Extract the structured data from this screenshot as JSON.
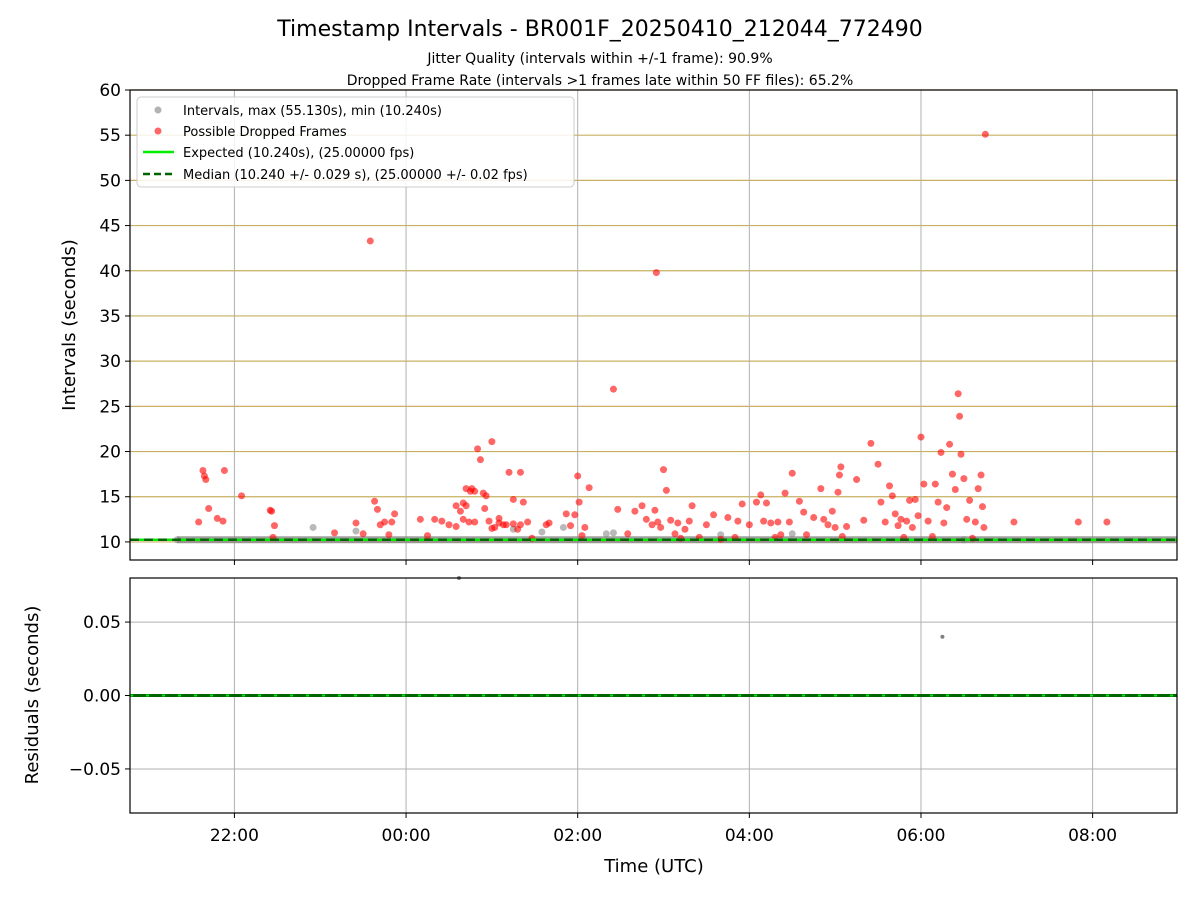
{
  "title": "Timestamp Intervals - BR001F_20250410_212044_772490",
  "subtitle1": "Jitter Quality (intervals within +/-1 frame): 90.9%",
  "subtitle2": "Dropped Frame Rate (intervals >1 frames late within 50 FF files): 65.2%",
  "colors": {
    "interval": "#808080",
    "dropped": "#ff0000",
    "expected": "#00ee00",
    "median": "#006400",
    "hgrid_top": "#c8b060",
    "grid": "#b0b0b0"
  },
  "chart_data": [
    {
      "type": "scatter",
      "ylabel": "Intervals (seconds)",
      "xlim": [
        "20:47",
        "08:59"
      ],
      "ylim": [
        8,
        60
      ],
      "x_ticks": [
        "22:00",
        "00:00",
        "02:00",
        "04:00",
        "06:00",
        "08:00"
      ],
      "y_ticks": [
        10,
        15,
        20,
        25,
        30,
        35,
        40,
        45,
        50,
        55,
        60
      ],
      "grid": true,
      "legend_position": "top-left",
      "legend": [
        "Intervals, max (55.130s), min (10.240s)",
        "Possible Dropped Frames",
        "Expected (10.240s), (25.00000 fps)",
        "Median (10.240 +/- 0.029 s), (25.00000 +/- 0.02 fps)"
      ],
      "expected_value": 10.24,
      "median_value": 10.24,
      "series": [
        {
          "name": "Intervals, max (55.130s), min (10.240s)",
          "points": [
            [
              "21:20",
              10.24
            ],
            [
              "06:30",
              10.24
            ],
            [
              "09:00",
              10.24
            ],
            [
              "22:55",
              11.6
            ],
            [
              "23:25",
              11.2
            ],
            [
              "01:15",
              11.4
            ],
            [
              "01:35",
              11.1
            ],
            [
              "01:50",
              11.6
            ],
            [
              "02:20",
              10.9
            ],
            [
              "02:25",
              11.0
            ],
            [
              "03:40",
              10.8
            ],
            [
              "04:30",
              10.9
            ]
          ]
        },
        {
          "name": "Possible Dropped Frames",
          "points": [
            [
              "21:35",
              12.2
            ],
            [
              "21:38",
              17.9
            ],
            [
              "21:39",
              17.3
            ],
            [
              "21:40",
              16.9
            ],
            [
              "21:42",
              13.7
            ],
            [
              "21:48",
              12.6
            ],
            [
              "21:52",
              12.3
            ],
            [
              "21:53",
              17.9
            ],
            [
              "22:05",
              15.1
            ],
            [
              "22:25",
              13.5
            ],
            [
              "22:26",
              13.4
            ],
            [
              "22:27",
              10.5
            ],
            [
              "22:28",
              11.8
            ],
            [
              "23:10",
              11.0
            ],
            [
              "23:25",
              12.1
            ],
            [
              "23:30",
              10.9
            ],
            [
              "23:35",
              43.3
            ],
            [
              "23:38",
              14.5
            ],
            [
              "23:40",
              13.6
            ],
            [
              "23:42",
              11.9
            ],
            [
              "23:45",
              12.2
            ],
            [
              "23:48",
              10.8
            ],
            [
              "23:50",
              12.2
            ],
            [
              "23:52",
              13.1
            ],
            [
              "00:10",
              12.5
            ],
            [
              "00:15",
              10.7
            ],
            [
              "00:20",
              12.5
            ],
            [
              "00:25",
              12.3
            ],
            [
              "00:30",
              11.9
            ],
            [
              "00:35",
              14.0
            ],
            [
              "00:40",
              14.3
            ],
            [
              "00:42",
              15.9
            ],
            [
              "00:45",
              15.6
            ],
            [
              "00:48",
              12.2
            ],
            [
              "00:55",
              13.7
            ],
            [
              "01:00",
              11.5
            ],
            [
              "01:05",
              12.1
            ],
            [
              "01:10",
              11.9
            ],
            [
              "01:15",
              14.7
            ],
            [
              "01:20",
              17.7
            ],
            [
              "00:35",
              11.7
            ],
            [
              "00:38",
              13.4
            ],
            [
              "00:40",
              12.5
            ],
            [
              "00:42",
              14.0
            ],
            [
              "00:44",
              12.2
            ],
            [
              "00:46",
              15.9
            ],
            [
              "00:48",
              15.6
            ],
            [
              "00:50",
              20.3
            ],
            [
              "00:52",
              19.1
            ],
            [
              "00:54",
              15.4
            ],
            [
              "00:56",
              15.1
            ],
            [
              "00:58",
              12.3
            ],
            [
              "01:00",
              21.1
            ],
            [
              "01:02",
              11.6
            ],
            [
              "01:05",
              12.6
            ],
            [
              "01:08",
              11.9
            ],
            [
              "01:12",
              17.7
            ],
            [
              "01:15",
              12.0
            ],
            [
              "01:18",
              11.4
            ],
            [
              "01:20",
              11.9
            ],
            [
              "01:22",
              14.4
            ],
            [
              "01:25",
              12.2
            ],
            [
              "01:28",
              10.4
            ],
            [
              "01:38",
              11.9
            ],
            [
              "01:40",
              12.1
            ],
            [
              "01:52",
              13.1
            ],
            [
              "01:55",
              11.8
            ],
            [
              "01:58",
              13.0
            ],
            [
              "02:00",
              17.3
            ],
            [
              "02:01",
              14.4
            ],
            [
              "02:03",
              10.7
            ],
            [
              "02:05",
              11.6
            ],
            [
              "02:08",
              16.0
            ],
            [
              "02:25",
              26.9
            ],
            [
              "02:28",
              13.6
            ],
            [
              "02:35",
              10.9
            ],
            [
              "02:40",
              13.4
            ],
            [
              "02:45",
              14.0
            ],
            [
              "02:48",
              12.5
            ],
            [
              "02:52",
              11.9
            ],
            [
              "02:54",
              13.5
            ],
            [
              "02:56",
              12.2
            ],
            [
              "02:58",
              11.6
            ],
            [
              "02:55",
              39.8
            ],
            [
              "03:00",
              18.0
            ],
            [
              "03:02",
              15.7
            ],
            [
              "03:05",
              12.4
            ],
            [
              "03:08",
              10.9
            ],
            [
              "03:10",
              12.1
            ],
            [
              "03:12",
              10.4
            ],
            [
              "03:15",
              11.4
            ],
            [
              "03:18",
              12.3
            ],
            [
              "03:20",
              14.0
            ],
            [
              "03:25",
              10.5
            ],
            [
              "03:30",
              11.9
            ],
            [
              "03:35",
              13.0
            ],
            [
              "03:40",
              10.3
            ],
            [
              "03:45",
              12.7
            ],
            [
              "03:50",
              10.5
            ],
            [
              "03:52",
              12.3
            ],
            [
              "03:55",
              14.2
            ],
            [
              "04:00",
              11.9
            ],
            [
              "04:05",
              14.4
            ],
            [
              "04:08",
              15.2
            ],
            [
              "04:10",
              12.3
            ],
            [
              "04:12",
              14.3
            ],
            [
              "04:15",
              12.1
            ],
            [
              "04:18",
              10.5
            ],
            [
              "04:20",
              12.2
            ],
            [
              "04:22",
              10.8
            ],
            [
              "04:25",
              15.4
            ],
            [
              "04:28",
              12.2
            ],
            [
              "04:30",
              17.6
            ],
            [
              "04:35",
              14.5
            ],
            [
              "04:38",
              13.3
            ],
            [
              "04:40",
              10.8
            ],
            [
              "04:45",
              12.7
            ],
            [
              "04:50",
              15.9
            ],
            [
              "04:52",
              12.5
            ],
            [
              "04:55",
              11.9
            ],
            [
              "04:58",
              13.4
            ],
            [
              "05:00",
              11.6
            ],
            [
              "05:02",
              15.5
            ],
            [
              "05:03",
              17.4
            ],
            [
              "05:04",
              18.3
            ],
            [
              "05:05",
              10.6
            ],
            [
              "05:08",
              11.7
            ],
            [
              "05:15",
              16.9
            ],
            [
              "05:20",
              12.4
            ],
            [
              "05:25",
              20.9
            ],
            [
              "05:30",
              18.6
            ],
            [
              "05:32",
              14.4
            ],
            [
              "05:35",
              12.2
            ],
            [
              "05:38",
              16.2
            ],
            [
              "05:40",
              15.1
            ],
            [
              "05:42",
              13.1
            ],
            [
              "05:44",
              11.8
            ],
            [
              "05:46",
              12.5
            ],
            [
              "05:48",
              10.5
            ],
            [
              "05:50",
              12.3
            ],
            [
              "05:52",
              14.6
            ],
            [
              "05:54",
              11.6
            ],
            [
              "05:56",
              14.7
            ],
            [
              "05:58",
              12.9
            ],
            [
              "06:00",
              21.6
            ],
            [
              "06:02",
              16.4
            ],
            [
              "06:05",
              12.3
            ],
            [
              "06:08",
              10.6
            ],
            [
              "06:10",
              16.4
            ],
            [
              "06:12",
              14.4
            ],
            [
              "06:14",
              19.9
            ],
            [
              "06:16",
              12.1
            ],
            [
              "06:18",
              13.8
            ],
            [
              "06:20",
              20.8
            ],
            [
              "06:22",
              17.5
            ],
            [
              "06:24",
              15.8
            ],
            [
              "06:26",
              26.4
            ],
            [
              "06:27",
              23.9
            ],
            [
              "06:28",
              19.7
            ],
            [
              "06:30",
              17.0
            ],
            [
              "06:32",
              12.5
            ],
            [
              "06:34",
              14.6
            ],
            [
              "06:36",
              10.4
            ],
            [
              "06:38",
              12.2
            ],
            [
              "06:40",
              15.9
            ],
            [
              "06:42",
              17.4
            ],
            [
              "06:43",
              13.9
            ],
            [
              "06:44",
              11.6
            ],
            [
              "06:45",
              55.1
            ],
            [
              "07:05",
              12.2
            ],
            [
              "07:50",
              12.2
            ],
            [
              "08:10",
              12.2
            ]
          ]
        },
        {
          "name": "Expected (10.240s), (25.00000 fps)",
          "values": [
            10.24
          ]
        },
        {
          "name": "Median (10.240 +/- 0.029 s), (25.00000 +/- 0.02 fps)",
          "values": [
            10.24
          ]
        }
      ]
    },
    {
      "type": "scatter",
      "xlabel": "Time (UTC)",
      "ylabel": "Residuals (seconds)",
      "xlim": [
        "20:47",
        "08:59"
      ],
      "ylim": [
        -0.08,
        0.08
      ],
      "x_ticks": [
        "22:00",
        "00:00",
        "02:00",
        "04:00",
        "06:00",
        "08:00"
      ],
      "y_ticks": [
        "0.05",
        "0.00",
        "−0.05"
      ],
      "grid": true,
      "points": [
        [
          "06:15",
          0.04
        ],
        [
          "00:37",
          0.08
        ]
      ]
    }
  ]
}
